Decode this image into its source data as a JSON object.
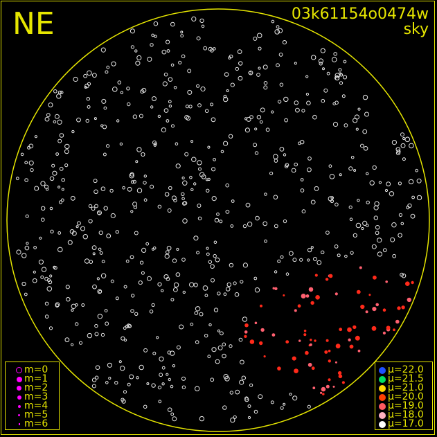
{
  "header": {
    "direction_label": "NE",
    "frame_id": "03k61154o0474w",
    "image_type": "sky"
  },
  "colors": {
    "annotation": "#e6e600",
    "catalog_star": "#ffffff",
    "magnitude_marker": "#ff00ff"
  },
  "magnitude_legend": [
    {
      "label": "m=0",
      "style": "ring"
    },
    {
      "label": "m=1",
      "style": "filled"
    },
    {
      "label": "m=2",
      "style": "filled"
    },
    {
      "label": "m=3",
      "style": "filled"
    },
    {
      "label": "m=4",
      "style": "filled"
    },
    {
      "label": "m=5",
      "style": "filled"
    },
    {
      "label": "m=6",
      "style": "filled"
    }
  ],
  "sky_brightness_legend": [
    {
      "label": "μ=22.0",
      "color": "#1e50ff"
    },
    {
      "label": "μ=21.5",
      "color": "#00e060"
    },
    {
      "label": "μ=21.0",
      "color": "#ffd800"
    },
    {
      "label": "μ=20.0",
      "color": "#ff4000"
    },
    {
      "label": "μ=19.0",
      "color": "#ff5a60"
    },
    {
      "label": "μ=18.0",
      "color": "#ffb0c0"
    },
    {
      "label": "μ=17.0",
      "color": "#ffffff"
    }
  ]
}
